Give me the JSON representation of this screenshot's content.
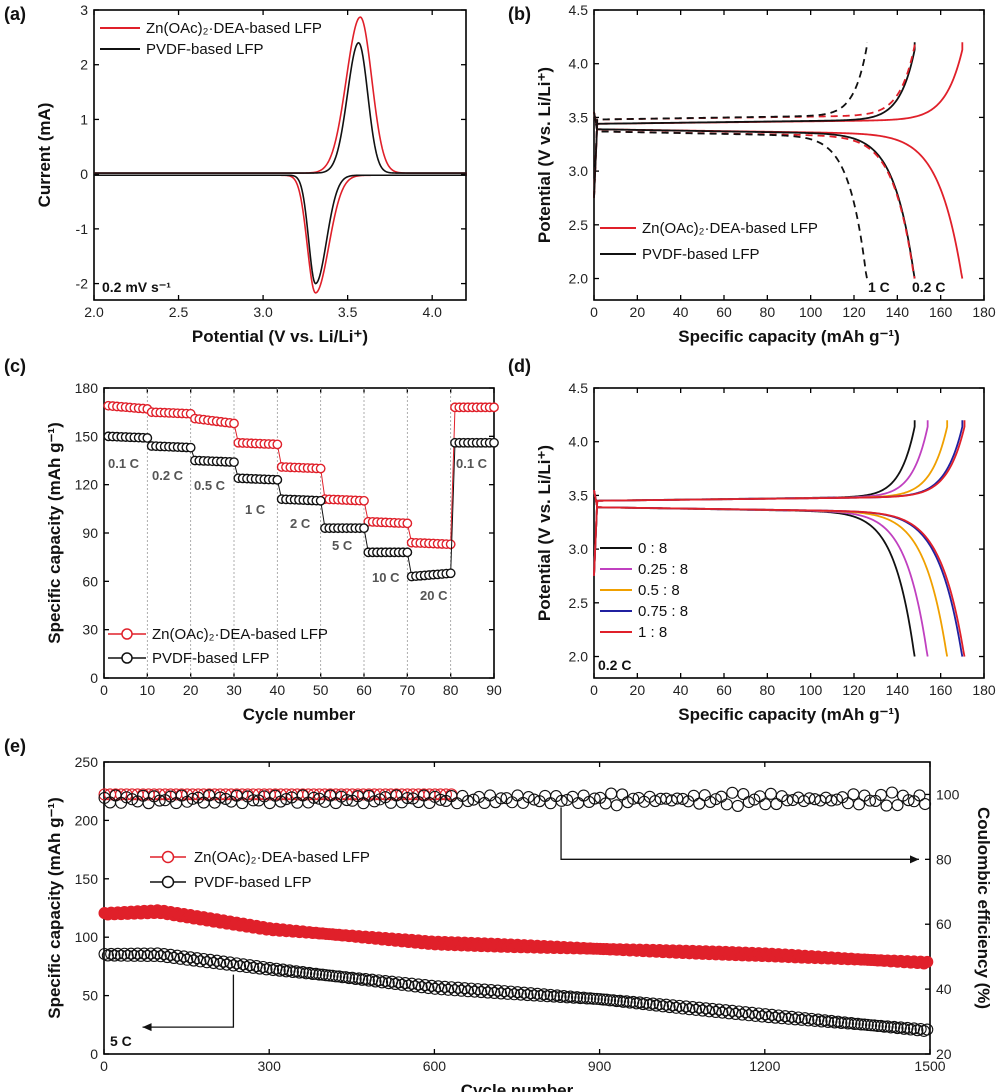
{
  "figure": {
    "panel_a_letter": "(a)",
    "panel_b_letter": "(b)",
    "panel_c_letter": "(c)",
    "panel_d_letter": "(d)",
    "panel_e_letter": "(e)"
  },
  "colors": {
    "red": "#e0202a",
    "black": "#111111",
    "magenta": "#c040c0",
    "orange": "#f0a000",
    "blue": "#2020a0",
    "gray_text": "#555555"
  },
  "chart_data": [
    {
      "id": "a",
      "type": "line",
      "xlabel": "Potential (V vs. Li/Li⁺)",
      "ylabel": "Current (mA)",
      "xlim": [
        2.0,
        4.2
      ],
      "ylim": [
        -2.3,
        3.0
      ],
      "xticks": [
        "2.0",
        "2.5",
        "3.0",
        "3.5",
        "4.0"
      ],
      "xtick_values": [
        2.0,
        2.5,
        3.0,
        3.5,
        4.0
      ],
      "yticks": [
        "-2",
        "-1",
        "0",
        "1",
        "2",
        "3"
      ],
      "ytick_values": [
        -2,
        -1,
        0,
        1,
        2,
        3
      ],
      "annotation": "0.2 mV s⁻¹",
      "series": [
        {
          "name": "Zn(OAc)₂·DEA-based LFP",
          "color": "red",
          "ox_peak": [
            3.575,
            2.85
          ],
          "red_peak": [
            3.31,
            -2.15
          ],
          "ox_width": 0.075,
          "red_width": 0.06
        },
        {
          "name": "PVDF-based LFP",
          "color": "black",
          "ox_peak": [
            3.565,
            2.38
          ],
          "red_peak": [
            3.31,
            -1.98
          ],
          "ox_width": 0.06,
          "red_width": 0.05
        }
      ],
      "legend_position": "top-left"
    },
    {
      "id": "b",
      "type": "line",
      "xlabel": "Specific capacity (mAh g⁻¹)",
      "ylabel": "Potential (V vs. Li/Li⁺)",
      "xlim": [
        0,
        180
      ],
      "ylim": [
        1.8,
        4.5
      ],
      "xticks": [
        "0",
        "20",
        "40",
        "60",
        "80",
        "100",
        "120",
        "140",
        "160",
        "180"
      ],
      "xtick_values": [
        0,
        20,
        40,
        60,
        80,
        100,
        120,
        140,
        160,
        180
      ],
      "yticks": [
        "2.0",
        "2.5",
        "3.0",
        "3.5",
        "4.0",
        "4.5"
      ],
      "ytick_values": [
        2.0,
        2.5,
        3.0,
        3.5,
        4.0,
        4.5
      ],
      "rate_labels": [
        "1 C",
        "0.2 C"
      ],
      "series": [
        {
          "name": "Zn(OAc)₂·DEA-based LFP",
          "color": "red",
          "rate": "0.2 C",
          "style": "solid",
          "capacity": 170
        },
        {
          "name": "PVDF-based LFP",
          "color": "black",
          "rate": "0.2 C",
          "style": "solid",
          "capacity": 148
        },
        {
          "name": "Zn(OAc)₂·DEA-based LFP",
          "color": "red",
          "rate": "1 C",
          "style": "dashed",
          "capacity": 148
        },
        {
          "name": "PVDF-based LFP",
          "color": "black",
          "rate": "1 C",
          "style": "dashed",
          "capacity": 126
        }
      ],
      "legend_position": "bottom-left"
    },
    {
      "id": "c",
      "type": "scatter",
      "xlabel": "Cycle number",
      "ylabel": "Specific capacity (mAh g⁻¹)",
      "xlim": [
        0,
        90
      ],
      "ylim": [
        0,
        180
      ],
      "xticks": [
        "0",
        "10",
        "20",
        "30",
        "40",
        "50",
        "60",
        "70",
        "80",
        "90"
      ],
      "xtick_values": [
        0,
        10,
        20,
        30,
        40,
        50,
        60,
        70,
        80,
        90
      ],
      "yticks": [
        "0",
        "30",
        "60",
        "90",
        "120",
        "150",
        "180"
      ],
      "ytick_values": [
        0,
        30,
        60,
        90,
        120,
        150,
        180
      ],
      "rates": [
        "0.1 C",
        "0.2 C",
        "0.5 C",
        "1 C",
        "2 C",
        "5 C",
        "10 C",
        "20 C",
        "0.1 C"
      ],
      "series": [
        {
          "name": "Zn(OAc)₂·DEA-based LFP",
          "color": "red",
          "segment_values": [
            [
              169,
              167
            ],
            [
              165,
              164
            ],
            [
              161,
              158
            ],
            [
              146,
              145
            ],
            [
              131,
              130
            ],
            [
              111,
              110
            ],
            [
              97,
              96
            ],
            [
              84,
              83
            ],
            [
              168,
              168
            ]
          ]
        },
        {
          "name": "PVDF-based LFP",
          "color": "black",
          "segment_values": [
            [
              150,
              149
            ],
            [
              144,
              143
            ],
            [
              135,
              134
            ],
            [
              124,
              123
            ],
            [
              111,
              110
            ],
            [
              93,
              93
            ],
            [
              78,
              78
            ],
            [
              63,
              65
            ],
            [
              146,
              146
            ]
          ]
        }
      ],
      "legend_position": "bottom-left"
    },
    {
      "id": "d",
      "type": "line",
      "xlabel": "Specific capacity (mAh g⁻¹)",
      "ylabel": "Potential (V vs. Li/Li⁺)",
      "xlim": [
        0,
        180
      ],
      "ylim": [
        1.8,
        4.5
      ],
      "xticks": [
        "0",
        "20",
        "40",
        "60",
        "80",
        "100",
        "120",
        "140",
        "160",
        "180"
      ],
      "xtick_values": [
        0,
        20,
        40,
        60,
        80,
        100,
        120,
        140,
        160,
        180
      ],
      "yticks": [
        "2.0",
        "2.5",
        "3.0",
        "3.5",
        "4.0",
        "4.5"
      ],
      "ytick_values": [
        2.0,
        2.5,
        3.0,
        3.5,
        4.0,
        4.5
      ],
      "annotation": "0.2 C",
      "series": [
        {
          "name": "0 : 8",
          "color": "black",
          "capacity": 148
        },
        {
          "name": "0.25 : 8",
          "color": "magenta",
          "capacity": 154
        },
        {
          "name": "0.5 : 8",
          "color": "orange",
          "capacity": 163
        },
        {
          "name": "0.75 : 8",
          "color": "blue",
          "capacity": 170
        },
        {
          "name": "1 : 8",
          "color": "red",
          "capacity": 171
        }
      ],
      "legend_position": "bottom-left"
    },
    {
      "id": "e",
      "type": "scatter",
      "xlabel": "Cycle number",
      "ylabel": "Specific capacity (mAh g⁻¹)",
      "y2label": "Coulombic efficiency (%)",
      "xlim": [
        0,
        1500
      ],
      "ylim": [
        0,
        250
      ],
      "y2lim": [
        20,
        110
      ],
      "xticks": [
        "0",
        "300",
        "600",
        "900",
        "1200",
        "1500"
      ],
      "xtick_values": [
        0,
        300,
        600,
        900,
        1200,
        1500
      ],
      "yticks": [
        "0",
        "50",
        "100",
        "150",
        "200",
        "250"
      ],
      "ytick_values": [
        0,
        50,
        100,
        150,
        200,
        250
      ],
      "y2ticks": [
        "20",
        "40",
        "60",
        "80",
        "100"
      ],
      "y2tick_values": [
        20,
        40,
        60,
        80,
        100
      ],
      "annotation": "5 C",
      "series": [
        {
          "name": "Zn(OAc)₂·DEA-based LFP",
          "color": "red",
          "capacity_points": [
            [
              0,
              120
            ],
            [
              100,
              122
            ],
            [
              300,
              107
            ],
            [
              600,
              95
            ],
            [
              900,
              90
            ],
            [
              1200,
              85
            ],
            [
              1500,
              78
            ]
          ],
          "efficiency": 100
        },
        {
          "name": "PVDF-based LFP",
          "color": "black",
          "capacity_points": [
            [
              0,
              85
            ],
            [
              100,
              85
            ],
            [
              300,
              73
            ],
            [
              600,
              57
            ],
            [
              900,
              47
            ],
            [
              1200,
              33
            ],
            [
              1500,
              20
            ]
          ],
          "efficiency": 98.5
        }
      ],
      "legend_position": "middle-left"
    }
  ]
}
